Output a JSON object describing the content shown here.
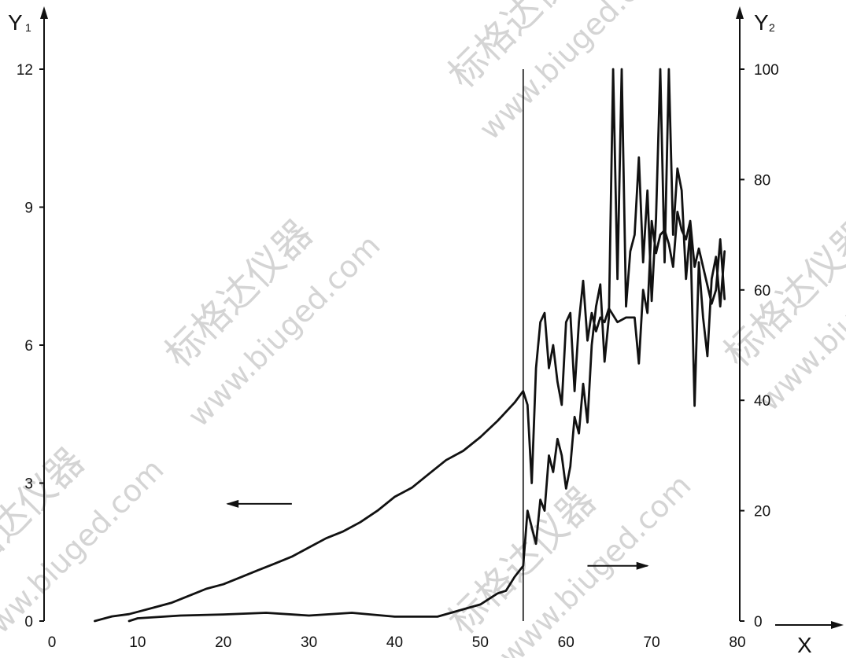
{
  "chart_data": {
    "type": "line",
    "x_axis": {
      "label": "X",
      "ticks": [
        0,
        10,
        20,
        30,
        40,
        50,
        60,
        70,
        80
      ],
      "range": [
        0,
        80
      ]
    },
    "y1_axis": {
      "label_main": "Y",
      "label_sub": "1",
      "ticks": [
        0,
        3,
        6,
        9,
        12
      ],
      "range": [
        0,
        12
      ]
    },
    "y2_axis": {
      "label_main": "Y",
      "label_sub": "2",
      "ticks": [
        0,
        20,
        40,
        60,
        80,
        100
      ],
      "range": [
        0,
        100
      ]
    },
    "vertical_marker_x": 55,
    "series": [
      {
        "axis": "y1",
        "points": [
          [
            5,
            0
          ],
          [
            7,
            0.1
          ],
          [
            9,
            0.15
          ],
          [
            10,
            0.2
          ],
          [
            12,
            0.3
          ],
          [
            14,
            0.4
          ],
          [
            16,
            0.55
          ],
          [
            18,
            0.7
          ],
          [
            20,
            0.8
          ],
          [
            22,
            0.95
          ],
          [
            24,
            1.1
          ],
          [
            26,
            1.25
          ],
          [
            28,
            1.4
          ],
          [
            30,
            1.6
          ],
          [
            32,
            1.8
          ],
          [
            34,
            1.95
          ],
          [
            36,
            2.15
          ],
          [
            38,
            2.4
          ],
          [
            40,
            2.7
          ],
          [
            42,
            2.9
          ],
          [
            44,
            3.2
          ],
          [
            46,
            3.5
          ],
          [
            48,
            3.7
          ],
          [
            50,
            4.0
          ],
          [
            52,
            4.35
          ],
          [
            54,
            4.75
          ],
          [
            55,
            5.0
          ],
          [
            55.5,
            4.7
          ],
          [
            56,
            3.0
          ],
          [
            56.5,
            5.5
          ],
          [
            57,
            6.5
          ],
          [
            57.5,
            6.7
          ],
          [
            58,
            5.5
          ],
          [
            58.5,
            6.0
          ],
          [
            59,
            5.2
          ],
          [
            59.5,
            4.7
          ],
          [
            60,
            6.5
          ],
          [
            60.5,
            6.7
          ],
          [
            61,
            5.0
          ],
          [
            61.5,
            6.5
          ],
          [
            62,
            7.4
          ],
          [
            62.5,
            6.1
          ],
          [
            63,
            6.7
          ],
          [
            63.5,
            6.3
          ],
          [
            64,
            6.6
          ],
          [
            64.5,
            6.5
          ],
          [
            65,
            6.8
          ],
          [
            66,
            6.5
          ],
          [
            67,
            6.6
          ],
          [
            68,
            6.6
          ],
          [
            68.5,
            5.6
          ],
          [
            69,
            7.2
          ],
          [
            69.5,
            6.7
          ],
          [
            70,
            8.7
          ],
          [
            70.5,
            8.0
          ],
          [
            71,
            8.4
          ],
          [
            71.5,
            8.5
          ],
          [
            72,
            8.2
          ],
          [
            72.5,
            7.7
          ],
          [
            73,
            8.9
          ],
          [
            73.5,
            8.5
          ],
          [
            74,
            8.3
          ],
          [
            74.5,
            8.7
          ],
          [
            75,
            7.7
          ],
          [
            75.5,
            8.1
          ],
          [
            76,
            7.7
          ],
          [
            76.5,
            7.3
          ],
          [
            77,
            6.9
          ],
          [
            77.5,
            7.2
          ],
          [
            78,
            8.3
          ],
          [
            78.5,
            7.0
          ]
        ]
      },
      {
        "axis": "y2",
        "points": [
          [
            9,
            0
          ],
          [
            10,
            0.5
          ],
          [
            15,
            1
          ],
          [
            20,
            1.2
          ],
          [
            25,
            1.5
          ],
          [
            30,
            1
          ],
          [
            35,
            1.5
          ],
          [
            40,
            0.8
          ],
          [
            45,
            0.8
          ],
          [
            50,
            3
          ],
          [
            52,
            5
          ],
          [
            53,
            5.5
          ],
          [
            54,
            8
          ],
          [
            55,
            10
          ],
          [
            55.5,
            20
          ],
          [
            56,
            17
          ],
          [
            56.5,
            14
          ],
          [
            57,
            22
          ],
          [
            57.5,
            20
          ],
          [
            58,
            30
          ],
          [
            58.5,
            27
          ],
          [
            59,
            33
          ],
          [
            59.5,
            30
          ],
          [
            60,
            24
          ],
          [
            60.5,
            28
          ],
          [
            61,
            37
          ],
          [
            61.5,
            34
          ],
          [
            62,
            43
          ],
          [
            62.5,
            36
          ],
          [
            63,
            50
          ],
          [
            63.5,
            57
          ],
          [
            64,
            61
          ],
          [
            64.5,
            47
          ],
          [
            65,
            55
          ],
          [
            65.5,
            100
          ],
          [
            66,
            62
          ],
          [
            66.5,
            100
          ],
          [
            67,
            57
          ],
          [
            67.5,
            67
          ],
          [
            68,
            70
          ],
          [
            68.5,
            84
          ],
          [
            69,
            65
          ],
          [
            69.5,
            78
          ],
          [
            70,
            58
          ],
          [
            70.5,
            73
          ],
          [
            71,
            100
          ],
          [
            71.5,
            65
          ],
          [
            72,
            100
          ],
          [
            72.5,
            70
          ],
          [
            73,
            82
          ],
          [
            73.5,
            78
          ],
          [
            74,
            62
          ],
          [
            74.5,
            71
          ],
          [
            75,
            39
          ],
          [
            75.5,
            65
          ],
          [
            76,
            55
          ],
          [
            76.5,
            48
          ],
          [
            77,
            62
          ],
          [
            77.5,
            66
          ],
          [
            78,
            57
          ],
          [
            78.5,
            67
          ]
        ]
      }
    ],
    "annotations": [
      {
        "type": "arrow",
        "direction": "left",
        "x_from": 28,
        "x_to": 20.5,
        "y1": 2.55
      },
      {
        "type": "arrow",
        "direction": "right",
        "x_from": 62.5,
        "x_to": 69.5,
        "y1": 1.2
      }
    ]
  },
  "watermark": {
    "cn": "标格达仪器",
    "url": "www.biuged.com"
  }
}
